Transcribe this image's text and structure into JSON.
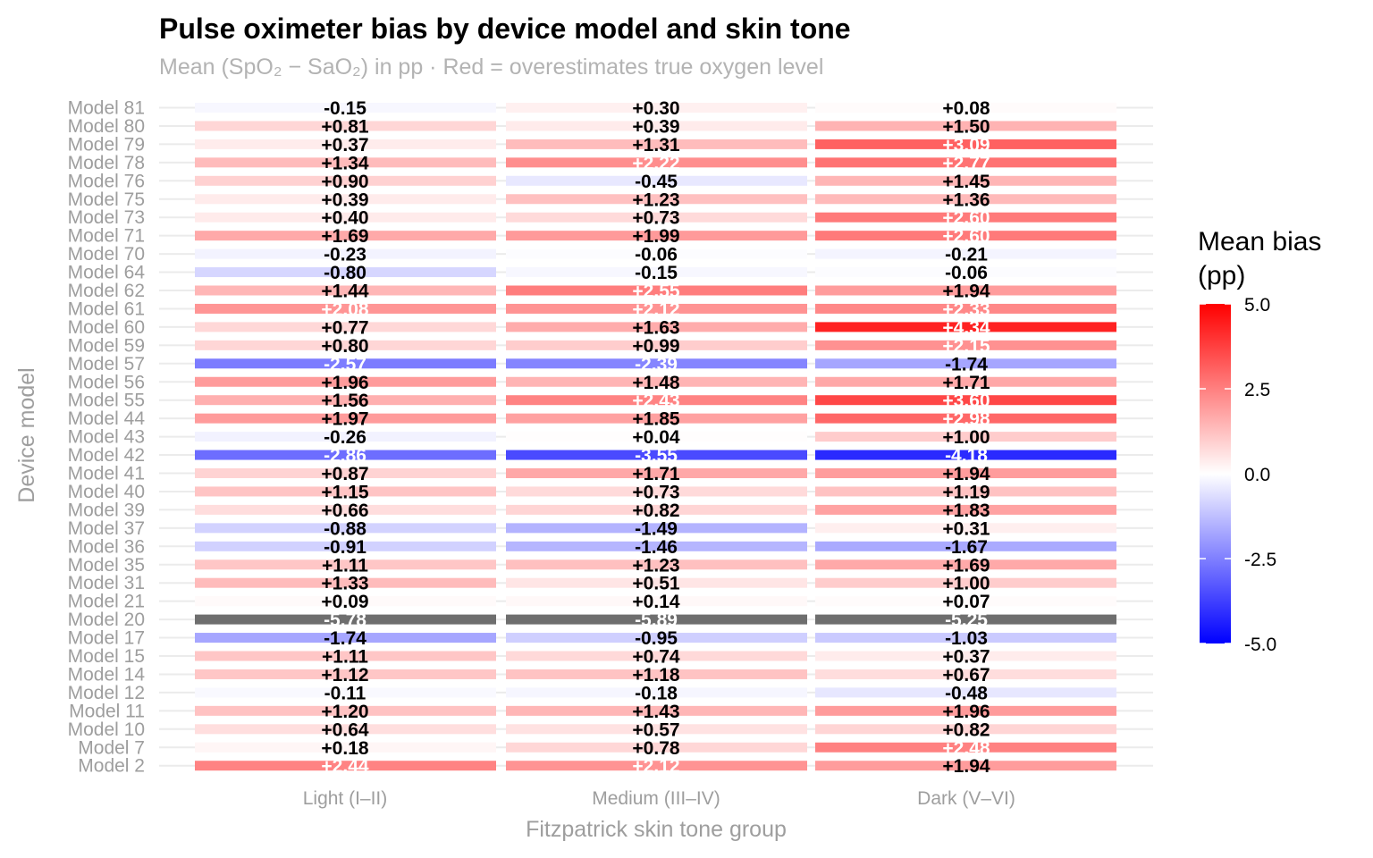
{
  "chart_data": {
    "type": "heatmap",
    "title": "Pulse oximeter bias by device model and skin tone",
    "subtitle": "Mean (SpO₂ − SaO₂) in pp · Red = overestimates true oxygen level",
    "xlabel": "Fitzpatrick skin tone group",
    "ylabel": "Device model",
    "x": [
      "Light (I–II)",
      "Medium (III–IV)",
      "Dark (V–VI)"
    ],
    "y": [
      "Model 81",
      "Model 80",
      "Model 79",
      "Model 78",
      "Model 76",
      "Model 75",
      "Model 73",
      "Model 71",
      "Model 70",
      "Model 64",
      "Model 62",
      "Model 61",
      "Model 60",
      "Model 59",
      "Model 57",
      "Model 56",
      "Model 55",
      "Model 44",
      "Model 43",
      "Model 42",
      "Model 41",
      "Model 40",
      "Model 39",
      "Model 37",
      "Model 36",
      "Model 35",
      "Model 31",
      "Model 21",
      "Model 20",
      "Model 17",
      "Model 15",
      "Model 14",
      "Model 12",
      "Model 11",
      "Model 10",
      "Model 7",
      "Model 2"
    ],
    "values": [
      [
        -0.15,
        0.3,
        0.08
      ],
      [
        0.81,
        0.39,
        1.5
      ],
      [
        0.37,
        1.31,
        3.09
      ],
      [
        1.34,
        2.22,
        2.77
      ],
      [
        0.9,
        -0.45,
        1.45
      ],
      [
        0.39,
        1.23,
        1.36
      ],
      [
        0.4,
        0.73,
        2.6
      ],
      [
        1.69,
        1.99,
        2.6
      ],
      [
        -0.23,
        -0.06,
        -0.21
      ],
      [
        -0.8,
        -0.15,
        -0.06
      ],
      [
        1.44,
        2.55,
        1.94
      ],
      [
        2.08,
        2.12,
        2.33
      ],
      [
        0.77,
        1.63,
        4.34
      ],
      [
        0.8,
        0.99,
        2.15
      ],
      [
        -2.57,
        -2.39,
        -1.74
      ],
      [
        1.96,
        1.48,
        1.71
      ],
      [
        1.56,
        2.43,
        3.6
      ],
      [
        1.97,
        1.85,
        2.98
      ],
      [
        -0.26,
        0.04,
        1.0
      ],
      [
        -2.86,
        -3.55,
        -4.18
      ],
      [
        0.87,
        1.71,
        1.94
      ],
      [
        1.15,
        0.73,
        1.19
      ],
      [
        0.66,
        0.82,
        1.83
      ],
      [
        -0.88,
        -1.49,
        0.31
      ],
      [
        -0.91,
        -1.46,
        -1.67
      ],
      [
        1.11,
        1.23,
        1.69
      ],
      [
        1.33,
        0.51,
        1.0
      ],
      [
        0.09,
        0.14,
        0.07
      ],
      [
        -5.78,
        -5.89,
        -5.25
      ],
      [
        -1.74,
        -0.95,
        -1.03
      ],
      [
        1.11,
        0.74,
        0.37
      ],
      [
        1.12,
        1.18,
        0.67
      ],
      [
        -0.11,
        -0.18,
        -0.48
      ],
      [
        1.2,
        1.43,
        1.96
      ],
      [
        0.64,
        0.57,
        0.82
      ],
      [
        0.18,
        0.78,
        2.48
      ],
      [
        2.44,
        2.12,
        1.94
      ]
    ],
    "legend": {
      "title_line1": "Mean bias",
      "title_line2": "(pp)",
      "ticks": [
        5.0,
        2.5,
        0.0,
        -2.5,
        -5.0
      ],
      "tick_labels": [
        "5.0",
        "2.5",
        "0.0",
        "-2.5",
        "-5.0"
      ],
      "limits": [
        -5,
        5
      ],
      "position": "right"
    },
    "colors": {
      "low": "#0000ff",
      "mid": "#ffffff",
      "high": "#ff0000",
      "out_of_range": "#6e6e6e",
      "label_dark": "#000000",
      "label_light": "#ffffff"
    },
    "grid": true
  }
}
